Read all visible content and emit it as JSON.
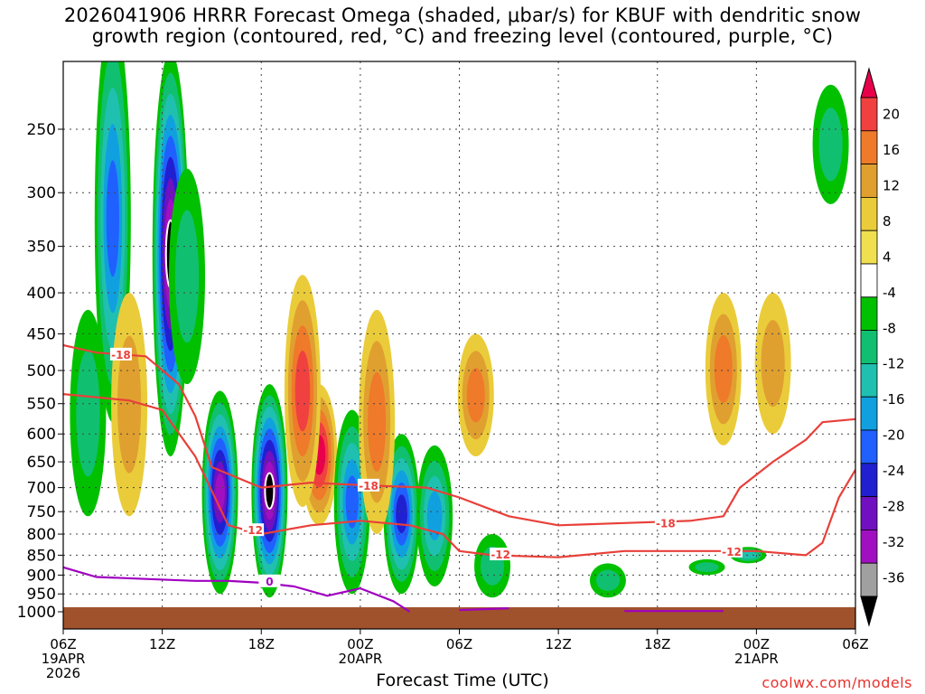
{
  "chart_data": {
    "type": "heatmap",
    "title_line1": "2026041906 HRRR Forecast Omega (shaded, μbar/s) for KBUF with dendritic snow",
    "title_line2": "growth region (contoured, red, °C) and freezing level (contoured, purple, °C)",
    "xlabel": "Forecast Time (UTC)",
    "credit": "coolwx.com/models",
    "y_ticks": [
      250,
      300,
      350,
      400,
      450,
      500,
      550,
      600,
      650,
      700,
      750,
      800,
      850,
      900,
      950,
      1000
    ],
    "y_range_hPa": [
      200,
      1000
    ],
    "x_range_hours": [
      0,
      48
    ],
    "x_ticks": [
      {
        "hour": 0,
        "label": "06Z",
        "date": "19APR",
        "year": "2026"
      },
      {
        "hour": 6,
        "label": "12Z"
      },
      {
        "hour": 12,
        "label": "18Z"
      },
      {
        "hour": 18,
        "label": "00Z",
        "date": "20APR"
      },
      {
        "hour": 24,
        "label": "06Z"
      },
      {
        "hour": 30,
        "label": "12Z"
      },
      {
        "hour": 36,
        "label": "18Z"
      },
      {
        "hour": 42,
        "label": "00Z",
        "date": "21APR"
      },
      {
        "hour": 48,
        "label": "06Z"
      }
    ],
    "colorbar": {
      "labels": [
        20,
        16,
        12,
        8,
        4,
        -4,
        -8,
        -12,
        -16,
        -20,
        -24,
        -28,
        -32,
        -36
      ],
      "colors": [
        "#e8004a",
        "#f04040",
        "#ee7a2a",
        "#e0a030",
        "#eacc3a",
        "#f0e050",
        "#ffffff",
        "#00c000",
        "#10c070",
        "#20c0b0",
        "#10a0e0",
        "#2060ff",
        "#2020d0",
        "#7010c0",
        "#a010c0",
        "#a0a0a0",
        "#000000"
      ]
    },
    "omega_features": [
      {
        "hour": 1.5,
        "p_top": 420,
        "p_bot": 760,
        "value": -8
      },
      {
        "hour": 3.0,
        "p_top": 180,
        "p_bot": 580,
        "value": -22
      },
      {
        "hour": 6.5,
        "p_top": 200,
        "p_bot": 640,
        "value": -36
      },
      {
        "hour": 9.5,
        "p_top": 530,
        "p_bot": 950,
        "value": -32
      },
      {
        "hour": 12.5,
        "p_top": 520,
        "p_bot": 960,
        "value": -36
      },
      {
        "hour": 15.5,
        "p_top": 520,
        "p_bot": 780,
        "value": 20
      },
      {
        "hour": 7.5,
        "p_top": 280,
        "p_bot": 520,
        "value": -8
      },
      {
        "hour": 17.5,
        "p_top": 560,
        "p_bot": 950,
        "value": -20
      },
      {
        "hour": 20.5,
        "p_top": 600,
        "p_bot": 950,
        "value": -24
      },
      {
        "hour": 22.5,
        "p_top": 620,
        "p_bot": 930,
        "value": -16
      },
      {
        "hour": 14.5,
        "p_top": 380,
        "p_bot": 740,
        "value": 16
      },
      {
        "hour": 4.0,
        "p_top": 400,
        "p_bot": 760,
        "value": 8
      },
      {
        "hour": 19.0,
        "p_top": 420,
        "p_bot": 800,
        "value": 12
      },
      {
        "hour": 25.0,
        "p_top": 450,
        "p_bot": 640,
        "value": 12
      },
      {
        "hour": 26.0,
        "p_top": 800,
        "p_bot": 960,
        "value": -8
      },
      {
        "hour": 33.0,
        "p_top": 870,
        "p_bot": 960,
        "value": -8
      },
      {
        "hour": 40.0,
        "p_top": 400,
        "p_bot": 620,
        "value": 12
      },
      {
        "hour": 43.0,
        "p_top": 400,
        "p_bot": 600,
        "value": 8
      },
      {
        "hour": 46.5,
        "p_top": 220,
        "p_bot": 310,
        "value": -8
      },
      {
        "hour": 39.0,
        "p_top": 860,
        "p_bot": 900,
        "value": -8
      },
      {
        "hour": 41.5,
        "p_top": 830,
        "p_bot": 870,
        "value": -12
      }
    ],
    "series": [
      {
        "name": "-18",
        "color": "#e8403a",
        "x": [
          0,
          2,
          5,
          7,
          8,
          9,
          12,
          15,
          18,
          22,
          24,
          27,
          30,
          34,
          38,
          40,
          41,
          43,
          45,
          46,
          48
        ],
        "p": [
          465,
          475,
          480,
          520,
          570,
          660,
          700,
          690,
          695,
          700,
          720,
          760,
          780,
          775,
          770,
          760,
          700,
          650,
          610,
          580,
          575
        ]
      },
      {
        "name": "-12",
        "color": "#e8403a",
        "x": [
          0,
          2,
          4,
          6,
          8,
          10,
          12,
          15,
          18,
          21,
          23,
          24,
          26,
          30,
          34,
          38,
          42,
          45,
          46,
          47,
          48
        ],
        "p": [
          535,
          540,
          545,
          560,
          640,
          780,
          800,
          780,
          770,
          780,
          800,
          840,
          850,
          855,
          840,
          840,
          840,
          850,
          820,
          720,
          665
        ]
      },
      {
        "name": "0",
        "color": "#a000c0",
        "x": [
          0,
          2,
          5,
          8,
          10,
          12,
          14,
          16,
          18,
          20,
          21
        ],
        "p": [
          880,
          905,
          910,
          915,
          915,
          920,
          930,
          955,
          935,
          970,
          1000
        ]
      },
      {
        "name": "0",
        "color": "#a000c0",
        "x": [
          24,
          27
        ],
        "p": [
          995,
          990
        ]
      },
      {
        "name": "0",
        "color": "#a000c0",
        "x": [
          34,
          40
        ],
        "p": [
          998,
          998
        ]
      }
    ],
    "contour_labels": [
      {
        "text": "-18",
        "hour": 3.5,
        "p": 477
      },
      {
        "text": "-18",
        "hour": 18.5,
        "p": 695
      },
      {
        "text": "-18",
        "hour": 36.5,
        "p": 774
      },
      {
        "text": "-12",
        "hour": 11.5,
        "p": 790
      },
      {
        "text": "-12",
        "hour": 26.5,
        "p": 847
      },
      {
        "text": "-12",
        "hour": 40.5,
        "p": 840
      },
      {
        "text": "0",
        "hour": 12.5,
        "p": 915
      }
    ],
    "grid": true
  }
}
